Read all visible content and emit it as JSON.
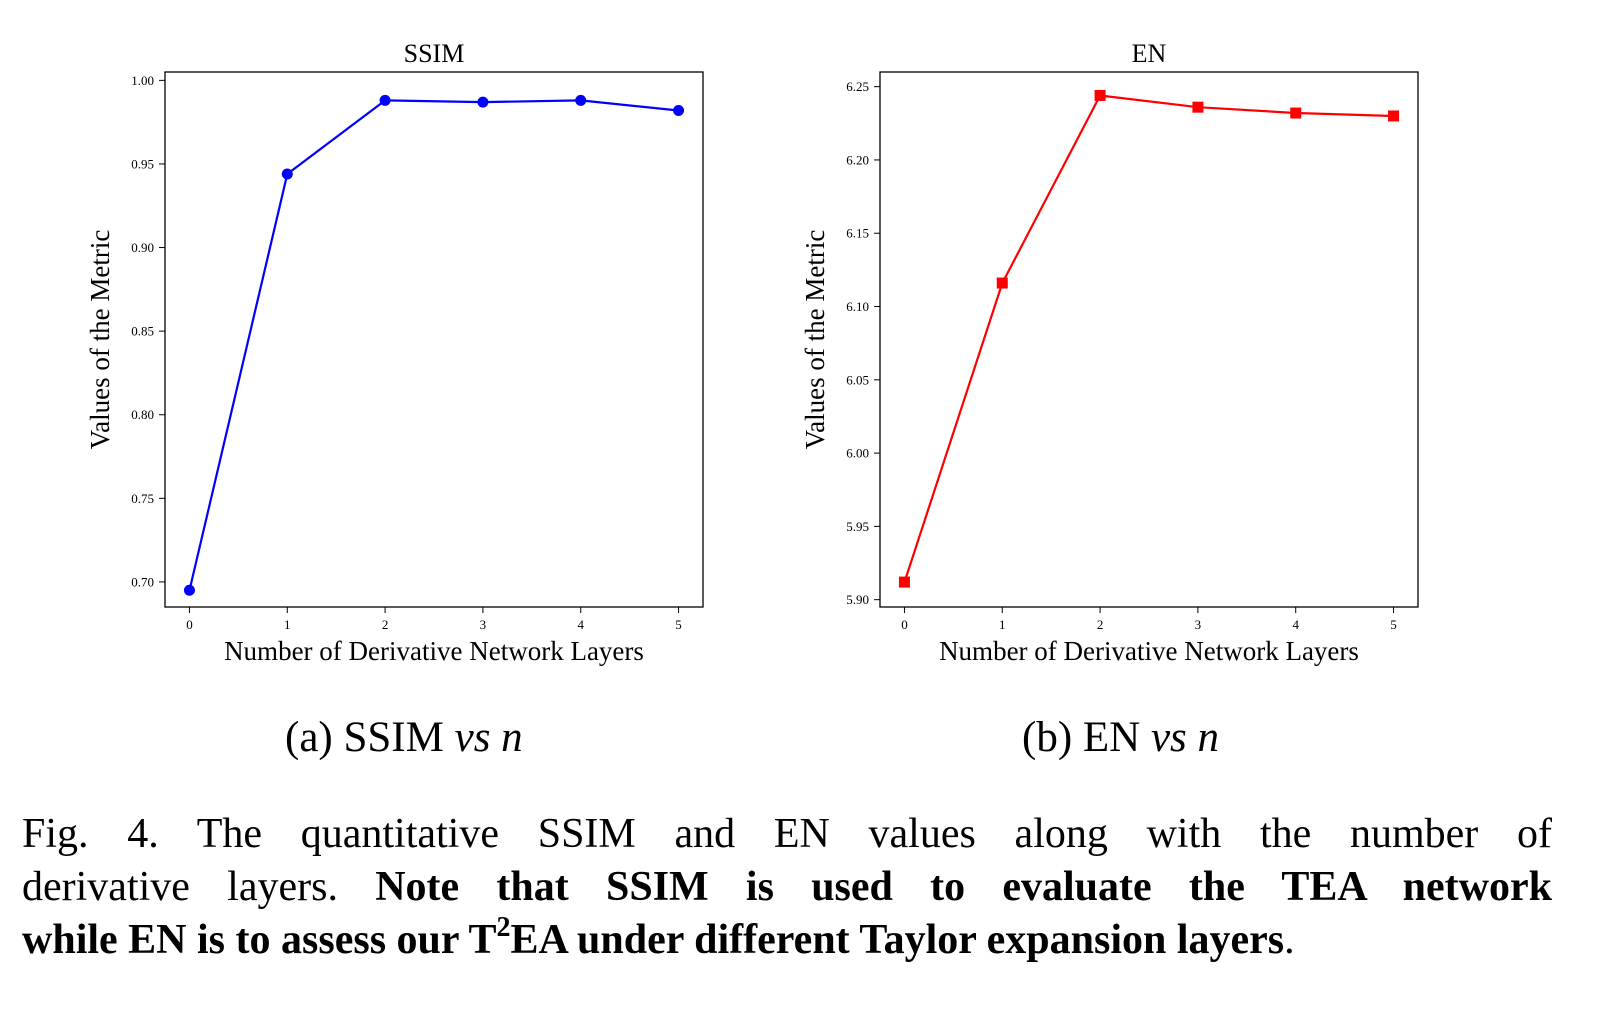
{
  "chart_data": [
    {
      "type": "line",
      "title": "SSIM",
      "xlabel": "Number of Derivative Network Layers",
      "ylabel": "Values of the Metric",
      "x": [
        0,
        1,
        2,
        3,
        4,
        5
      ],
      "x_ticks": [
        "0",
        "1",
        "2",
        "3",
        "4",
        "5"
      ],
      "y_ticks": [
        "0.70",
        "0.75",
        "0.80",
        "0.85",
        "0.90",
        "0.95",
        "1.00"
      ],
      "ylim": [
        0.685,
        1.005
      ],
      "xlim": [
        -0.25,
        5.25
      ],
      "series": [
        {
          "name": "SSIM",
          "values": [
            0.695,
            0.944,
            0.988,
            0.987,
            0.988,
            0.982
          ],
          "color": "#0000ff",
          "marker": "circle"
        }
      ],
      "subcaption": {
        "label": "(a) SSIM ",
        "italic": "vs n"
      }
    },
    {
      "type": "line",
      "title": "EN",
      "xlabel": "Number of Derivative Network Layers",
      "ylabel": "Values of the Metric",
      "x": [
        0,
        1,
        2,
        3,
        4,
        5
      ],
      "x_ticks": [
        "0",
        "1",
        "2",
        "3",
        "4",
        "5"
      ],
      "y_ticks": [
        "5.90",
        "5.95",
        "6.00",
        "6.05",
        "6.10",
        "6.15",
        "6.20",
        "6.25"
      ],
      "ylim": [
        5.895,
        6.26
      ],
      "xlim": [
        -0.25,
        5.25
      ],
      "series": [
        {
          "name": "EN",
          "values": [
            5.912,
            6.116,
            6.244,
            6.236,
            6.232,
            6.23
          ],
          "color": "#ff0000",
          "marker": "square"
        }
      ],
      "subcaption": {
        "label": "(b) EN ",
        "italic": "vs n"
      }
    }
  ],
  "caption": {
    "line1": "Fig. 4.    The quantitative SSIM and EN values along with the number of",
    "line2_plain": "derivative layers. ",
    "line2_bold": "Note that SSIM is used to evaluate the TEA network",
    "line3_bold_a": "while EN is to assess our T",
    "line3_sup": "2",
    "line3_bold_b": "EA under different Taylor expansion layers",
    "line3_end": "."
  }
}
